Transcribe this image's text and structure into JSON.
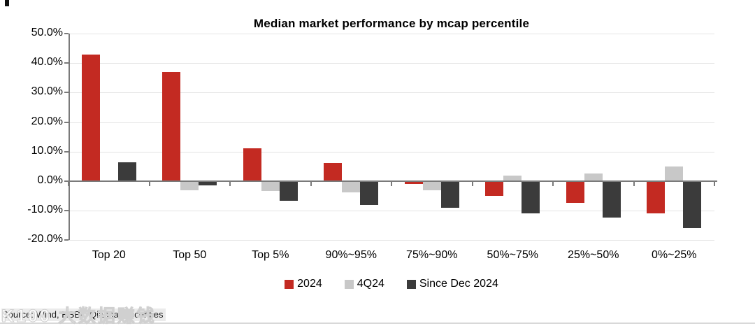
{
  "chart_data": {
    "type": "bar",
    "title": "Median market performance by mcap percentile",
    "unit": "percent",
    "categories": [
      "Top 20",
      "Top 50",
      "Top 5%",
      "90%~95%",
      "75%~90%",
      "50%~75%",
      "25%~50%",
      "0%~25%"
    ],
    "series": [
      {
        "name": "2024",
        "color": "#c32a22",
        "values": [
          43.0,
          37.0,
          11.2,
          6.2,
          -1.0,
          -5.0,
          -7.3,
          -11.0
        ]
      },
      {
        "name": "4Q24",
        "color": "#c8c8c8",
        "values": [
          0.0,
          -3.0,
          -3.2,
          -3.8,
          -3.0,
          2.0,
          2.6,
          5.0
        ]
      },
      {
        "name": "Since Dec 2024",
        "color": "#3b3b3b",
        "values": [
          6.3,
          -1.5,
          -6.6,
          -8.0,
          -9.0,
          -11.0,
          -12.4,
          -15.8
        ]
      }
    ],
    "ylim": [
      -20,
      50
    ],
    "y_ticks": [
      50,
      40,
      30,
      20,
      10,
      0,
      -10,
      -20
    ],
    "y_tick_labels": [
      "50.0%",
      "40.0%",
      "30.0%",
      "20.0%",
      "10.0%",
      "0.0%",
      "-10.0%",
      "-20.0%"
    ],
    "grid": true,
    "legend_position": "bottom"
  },
  "footer": {
    "source": "Source: Wind, HSBC Qianhai Securities",
    "watermark": "K100 大数据赚钱"
  }
}
